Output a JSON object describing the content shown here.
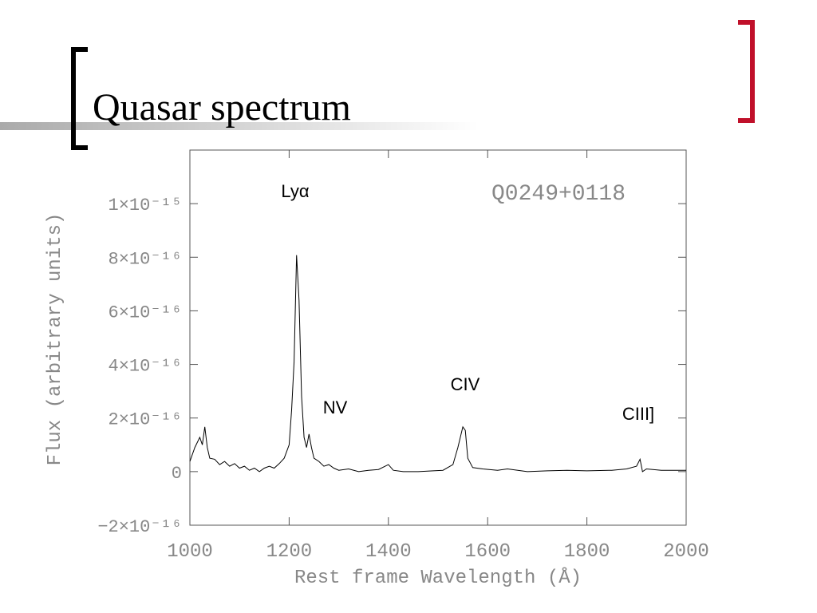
{
  "slide": {
    "title": "Quasar spectrum"
  },
  "chart_data": {
    "type": "line",
    "x_label": "Rest frame Wavelength (Å)",
    "y_label": "Flux (arbitrary units)",
    "annotations": [
      "Q0249+0118",
      "Lyα",
      "NV",
      "CIV",
      "CIII]"
    ],
    "xlim": [
      1000,
      2000
    ],
    "xticks": [
      1000,
      1200,
      1400,
      1600,
      1800,
      2000
    ],
    "ylim": [
      -2e-16,
      1.2e-15
    ],
    "yticks": [
      {
        "value": -2e-16,
        "label": "−2×10⁻¹⁶"
      },
      0,
      {
        "value": 2e-16,
        "label": "2×10⁻¹⁶"
      },
      {
        "value": 4e-16,
        "label": "4×10⁻¹⁶"
      },
      {
        "value": 6e-16,
        "label": "6×10⁻¹⁶"
      },
      {
        "value": 8e-16,
        "label": "8×10⁻¹⁶"
      },
      {
        "value": 1e-15,
        "label": "1×10⁻¹⁵"
      }
    ],
    "color": "#000000",
    "x": [
      1000,
      1010,
      1020,
      1025,
      1030,
      1035,
      1040,
      1050,
      1060,
      1070,
      1080,
      1090,
      1100,
      1110,
      1120,
      1130,
      1140,
      1150,
      1160,
      1170,
      1180,
      1190,
      1200,
      1205,
      1210,
      1215,
      1220,
      1225,
      1230,
      1235,
      1240,
      1245,
      1250,
      1260,
      1270,
      1280,
      1290,
      1300,
      1320,
      1340,
      1360,
      1380,
      1400,
      1410,
      1430,
      1460,
      1490,
      1510,
      1530,
      1540,
      1550,
      1555,
      1560,
      1570,
      1590,
      1620,
      1640,
      1680,
      1720,
      1760,
      1800,
      1850,
      1880,
      1900,
      1907,
      1912,
      1920,
      1950,
      2000
    ],
    "values": [
      3.8e-17,
      9e-17,
      1.28e-16,
      1e-16,
      1.67e-16,
      9e-17,
      5e-17,
      4.6e-17,
      2.6e-17,
      3.8e-17,
      2e-17,
      3e-17,
      1.3e-17,
      2e-17,
      5e-18,
      1.3e-17,
      0,
      1.3e-17,
      2e-17,
      1.3e-17,
      3e-17,
      5e-17,
      1e-16,
      2.3e-16,
      4.1e-16,
      8.08e-16,
      6.4e-16,
      2.8e-16,
      1.28e-16,
      9e-17,
      1.4e-16,
      9e-17,
      5e-17,
      3.8e-17,
      2e-17,
      2.6e-17,
      1.3e-17,
      5e-18,
      1e-17,
      0,
      5e-18,
      8e-18,
      2.6e-17,
      5e-18,
      0,
      0,
      3e-18,
      5e-18,
      2.6e-17,
      9e-17,
      1.67e-16,
      1.54e-16,
      5e-17,
      1.5e-17,
      1e-17,
      5e-18,
      1e-17,
      0,
      3e-18,
      5e-18,
      3e-18,
      5e-18,
      1e-17,
      2e-17,
      4.6e-17,
      0,
      1e-17,
      5e-18,
      5e-18
    ]
  }
}
